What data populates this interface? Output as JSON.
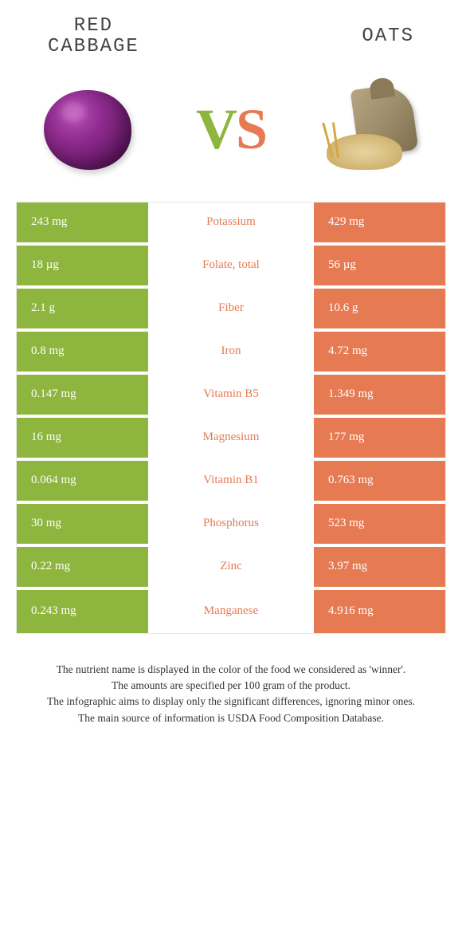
{
  "colors": {
    "left": "#8eb53e",
    "right": "#e67a52",
    "row_border": "#ffffff",
    "cell_text": "#ffffff",
    "background": "#ffffff"
  },
  "header": {
    "left_title": "RED\nCABBAGE",
    "right_title": "OATS",
    "vs_v": "V",
    "vs_s": "S"
  },
  "table": {
    "rows": [
      {
        "left": "243 mg",
        "label": "Potassium",
        "right": "429 mg",
        "label_color": "#e67a52"
      },
      {
        "left": "18 µg",
        "label": "Folate, total",
        "right": "56 µg",
        "label_color": "#e67a52"
      },
      {
        "left": "2.1 g",
        "label": "Fiber",
        "right": "10.6 g",
        "label_color": "#e67a52"
      },
      {
        "left": "0.8 mg",
        "label": "Iron",
        "right": "4.72 mg",
        "label_color": "#e67a52"
      },
      {
        "left": "0.147 mg",
        "label": "Vitamin B5",
        "right": "1.349 mg",
        "label_color": "#e67a52"
      },
      {
        "left": "16 mg",
        "label": "Magnesium",
        "right": "177 mg",
        "label_color": "#e67a52"
      },
      {
        "left": "0.064 mg",
        "label": "Vitamin B1",
        "right": "0.763 mg",
        "label_color": "#e67a52"
      },
      {
        "left": "30 mg",
        "label": "Phosphorus",
        "right": "523 mg",
        "label_color": "#e67a52"
      },
      {
        "left": "0.22 mg",
        "label": "Zinc",
        "right": "3.97 mg",
        "label_color": "#e67a52"
      },
      {
        "left": "0.243 mg",
        "label": "Manganese",
        "right": "4.916 mg",
        "label_color": "#e67a52"
      }
    ]
  },
  "footer": {
    "line1": "The nutrient name is displayed in the color of the food we considered as 'winner'.",
    "line2": "The amounts are specified per 100 gram of the product.",
    "line3": "The infographic aims to display only the significant differences, ignoring minor ones.",
    "line4": "The main source of information is USDA Food Composition Database."
  }
}
